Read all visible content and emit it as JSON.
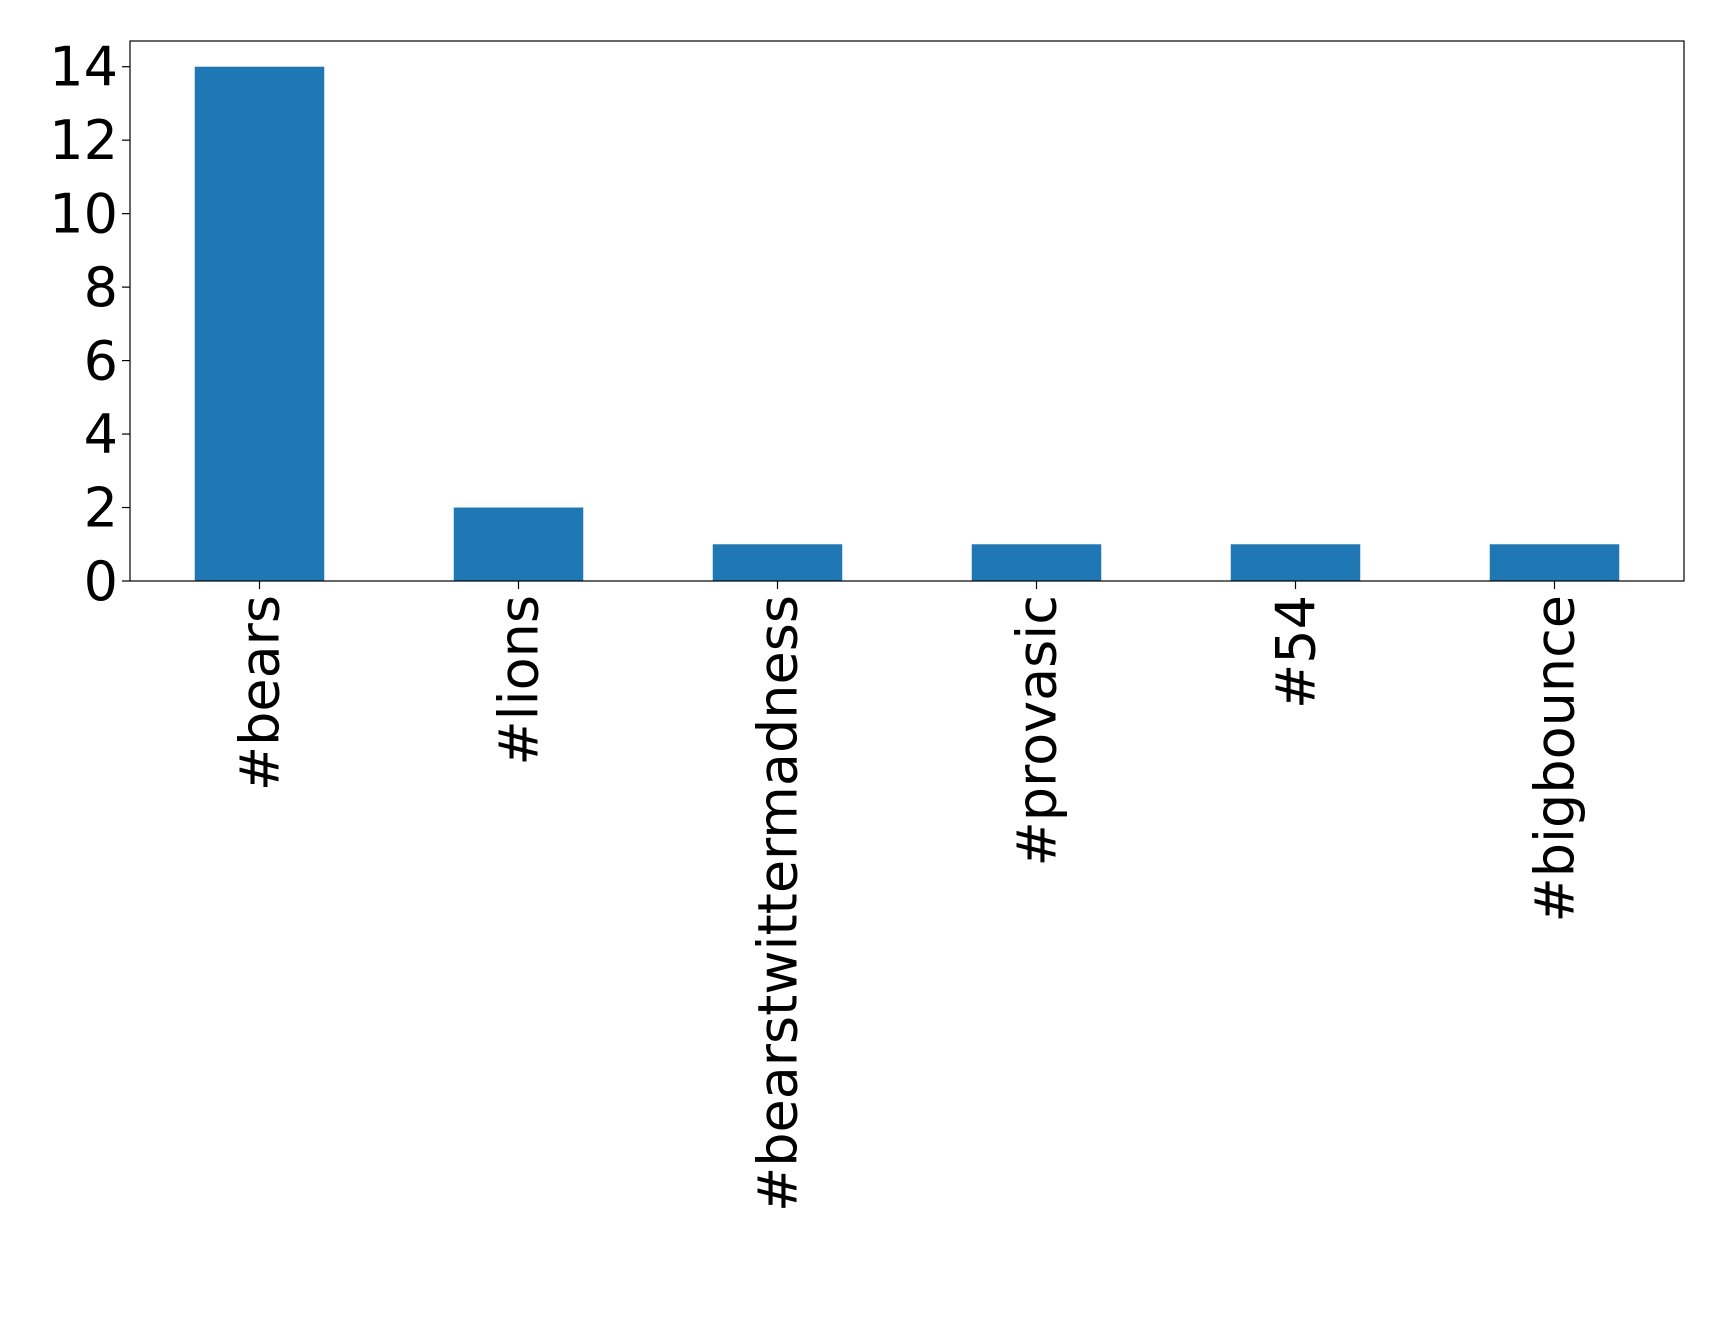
{
  "chart_data": {
    "type": "bar",
    "categories": [
      "#bears",
      "#lions",
      "#bearstwittermadness",
      "#provasic",
      "#54",
      "#bigbounce"
    ],
    "values": [
      14,
      2,
      1,
      1,
      1,
      1
    ],
    "color": "#1f77b4",
    "ylim": [
      0,
      14.7
    ],
    "yticks": [
      0,
      2,
      4,
      6,
      8,
      10,
      12,
      14
    ],
    "grid": false
  }
}
